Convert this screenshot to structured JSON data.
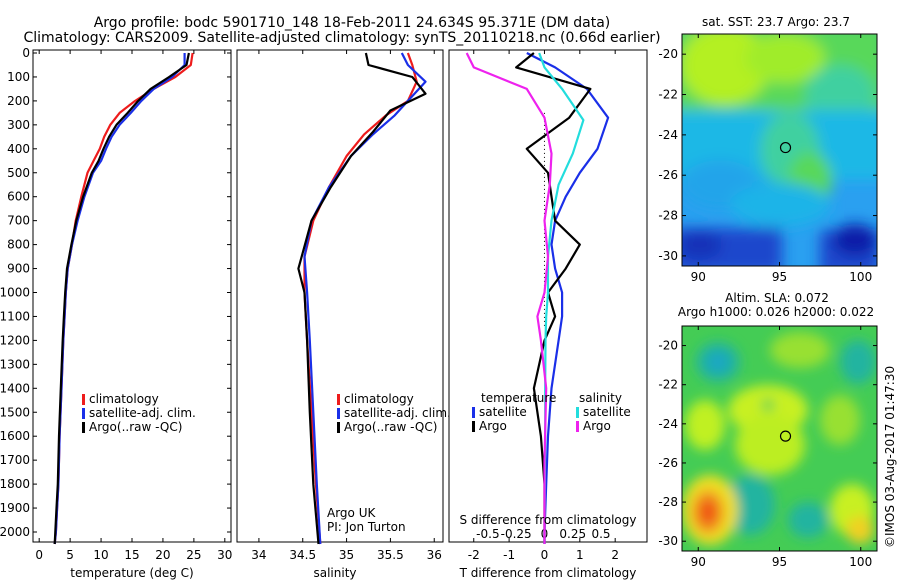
{
  "header": {
    "title_line1": "Argo profile: bodc 5901710_148 18-Feb-2011 24.634S 95.371E (DM data)",
    "title_line2": "Climatology: CARS2009. Satellite-adjusted climatology: synTS_20110218.nc (0.66d earlier)"
  },
  "credit": "©IMOS 03-Aug-2017 01:47:30",
  "colors": {
    "climatology": "#ee1c1c",
    "satellite": "#1a2fe8",
    "argo": "#000000",
    "sal_satellite": "#22dddd",
    "sal_argo": "#ee22ee"
  },
  "chart_data": [
    {
      "type": "line",
      "panel": "temperature",
      "xlabel": "temperature (deg C)",
      "xlim": [
        -1,
        31
      ],
      "xticks": [
        0,
        5,
        10,
        15,
        20,
        25,
        30
      ],
      "ylim": [
        2050,
        0
      ],
      "yticks": [
        0,
        100,
        200,
        300,
        400,
        500,
        600,
        700,
        800,
        900,
        1000,
        1100,
        1200,
        1300,
        1400,
        1500,
        1600,
        1700,
        1800,
        1900,
        2000
      ],
      "legend": [
        "climatology",
        "satellite-adj. clim.",
        "Argo(..raw -QC)"
      ],
      "series": [
        {
          "name": "climatology",
          "color": "#ee1c1c",
          "x": [
            24.8,
            24.5,
            22,
            18.5,
            15.5,
            13,
            11.5,
            10.5,
            9.8,
            8.8,
            7.8,
            6.8,
            5.9,
            5.3,
            4.6,
            4.3,
            4.1,
            3.9,
            3.6,
            3.3,
            3.1,
            2.9,
            2.7,
            2.5
          ],
          "y": [
            0,
            50,
            100,
            150,
            200,
            250,
            300,
            350,
            400,
            450,
            500,
            600,
            700,
            800,
            900,
            1000,
            1100,
            1200,
            1400,
            1600,
            1800,
            1900,
            2000,
            2050
          ]
        },
        {
          "name": "satellite-adj. clim.",
          "color": "#1a2fe8",
          "x": [
            23.5,
            23.5,
            21.5,
            18.5,
            16.5,
            14.8,
            13,
            11.7,
            10.8,
            10,
            8.7,
            7.3,
            6.2,
            5.3,
            4.6,
            4.3,
            4.1,
            3.9,
            3.6,
            3.3,
            3.1,
            2.9,
            2.7,
            2.5
          ],
          "y": [
            0,
            50,
            100,
            150,
            200,
            250,
            300,
            350,
            400,
            450,
            500,
            600,
            700,
            800,
            900,
            1000,
            1100,
            1200,
            1400,
            1600,
            1800,
            1900,
            2000,
            2050
          ]
        },
        {
          "name": "Argo(..raw -QC)",
          "color": "#000000",
          "x": [
            24.2,
            23.8,
            21,
            18,
            16,
            14.3,
            12.5,
            11.3,
            10.4,
            9.6,
            8.5,
            7.1,
            6,
            5.2,
            4.5,
            4.2,
            4,
            3.8,
            3.5,
            3.2,
            3,
            2.8,
            2.6,
            2.5
          ],
          "y": [
            0,
            50,
            100,
            150,
            200,
            250,
            300,
            350,
            400,
            450,
            500,
            600,
            700,
            800,
            900,
            1000,
            1100,
            1200,
            1400,
            1600,
            1800,
            1900,
            2000,
            2050
          ]
        }
      ]
    },
    {
      "type": "line",
      "panel": "salinity",
      "xlabel": "salinity",
      "xlim": [
        33.75,
        36.1
      ],
      "xticks": [
        34,
        34.5,
        35,
        35.5,
        36
      ],
      "ylim": [
        2050,
        0
      ],
      "legend": [
        "climatology",
        "satellite-adj. clim.",
        "Argo(..raw -QC)"
      ],
      "annotation": [
        "Argo UK",
        "PI: Jon Turton"
      ],
      "series": [
        {
          "name": "climatology",
          "color": "#ee1c1c",
          "x": [
            35.7,
            35.75,
            35.8,
            35.7,
            35.45,
            35.2,
            35.0,
            34.8,
            34.62,
            34.52,
            34.52,
            34.55,
            34.6,
            34.65,
            34.7
          ],
          "y": [
            0,
            50,
            120,
            200,
            260,
            340,
            430,
            560,
            700,
            850,
            1000,
            1200,
            1500,
            1800,
            2050
          ]
        },
        {
          "name": "satellite-adj. clim.",
          "color": "#1a2fe8",
          "x": [
            35.63,
            35.7,
            35.9,
            35.7,
            35.55,
            35.3,
            35.05,
            34.8,
            34.6,
            34.52,
            34.55,
            34.58,
            34.62,
            34.66,
            34.7
          ],
          "y": [
            0,
            50,
            120,
            200,
            260,
            340,
            430,
            560,
            700,
            850,
            1000,
            1200,
            1500,
            1800,
            2050
          ]
        },
        {
          "name": "Argo(..raw -QC)",
          "color": "#000000",
          "x": [
            35.22,
            35.25,
            35.75,
            35.9,
            35.5,
            35.3,
            35.05,
            34.82,
            34.6,
            34.45,
            34.52,
            34.55,
            34.58,
            34.62,
            34.68
          ],
          "y": [
            0,
            50,
            100,
            170,
            240,
            330,
            430,
            560,
            700,
            900,
            1000,
            1200,
            1500,
            1800,
            2050
          ]
        }
      ]
    },
    {
      "type": "line",
      "panel": "difference",
      "xlabel": "T difference from climatology",
      "xlabel2": "S difference from climatology",
      "xlim": [
        -2.7,
        2.9
      ],
      "xticks": [
        -2,
        -1,
        0,
        1,
        2
      ],
      "xticks2": [
        "-0.5",
        "-0.25",
        "0",
        "0.25",
        "0.5"
      ],
      "ylim": [
        2050,
        0
      ],
      "legend_headings": [
        "temperature",
        "salinity"
      ],
      "legend": [
        "satellite",
        "Argo",
        "satellite",
        "Argo"
      ],
      "series": [
        {
          "name": "satellite",
          "group": "temperature",
          "color": "#1a2fe8",
          "x": [
            -0.5,
            0.3,
            1.2,
            1.8,
            1.5,
            1.0,
            0.6,
            0.3,
            0.2,
            0.3,
            0.5,
            0.5,
            0.4,
            0.2,
            0.1,
            0.05,
            0,
            0
          ],
          "y": [
            0,
            60,
            150,
            270,
            400,
            500,
            600,
            700,
            800,
            900,
            1000,
            1100,
            1200,
            1400,
            1600,
            1800,
            2000,
            2050
          ]
        },
        {
          "name": "Argo",
          "group": "temperature",
          "color": "#000000",
          "x": [
            -0.3,
            -0.8,
            1.3,
            0.7,
            -0.5,
            0.1,
            0.2,
            0.3,
            1.0,
            0.6,
            0.1,
            0.3,
            0.0,
            -0.3,
            -0.1,
            0,
            0,
            0
          ],
          "y": [
            0,
            60,
            150,
            270,
            400,
            500,
            600,
            700,
            800,
            900,
            1000,
            1100,
            1200,
            1400,
            1600,
            1800,
            2000,
            2050
          ]
        },
        {
          "name": "satellite",
          "group": "salinity",
          "color": "#22dddd",
          "x": [
            -0.15,
            0.0,
            0.5,
            1.1,
            0.8,
            0.4,
            0.2,
            0.1,
            0.1,
            0.05,
            0.03,
            0.02,
            0.02,
            0.01,
            0,
            0
          ],
          "y": [
            0,
            60,
            150,
            280,
            420,
            550,
            700,
            850,
            1000,
            1100,
            1200,
            1400,
            1600,
            1800,
            2000,
            2050
          ]
        },
        {
          "name": "Argo",
          "group": "salinity",
          "color": "#ee22ee",
          "x": [
            -2.2,
            -2.0,
            -0.5,
            0.0,
            0.2,
            0.15,
            0.0,
            0.1,
            0.0,
            -0.2,
            -0.1,
            0.05,
            0.0,
            0
          ],
          "y": [
            0,
            60,
            150,
            270,
            420,
            550,
            700,
            850,
            1000,
            1100,
            1200,
            1400,
            1700,
            2050
          ]
        }
      ]
    },
    {
      "type": "heatmap",
      "panel": "sst-map",
      "title": "sat. SST: 23.7 Argo: 23.7",
      "xlim": [
        89,
        101
      ],
      "ylim": [
        -30.5,
        -19
      ],
      "xticks": [
        90,
        95,
        100
      ],
      "yticks": [
        -20,
        -22,
        -24,
        -26,
        -28,
        -30
      ],
      "marker": {
        "lon": 95.37,
        "lat": -24.63
      }
    },
    {
      "type": "heatmap",
      "panel": "sla-map",
      "title_line1": "Altim. SLA: 0.072",
      "title_line2": "Argo h1000: 0.026 h2000: 0.022",
      "xlim": [
        89,
        101
      ],
      "ylim": [
        -30.5,
        -19
      ],
      "xticks": [
        90,
        95,
        100
      ],
      "yticks": [
        -20,
        -22,
        -24,
        -26,
        -28,
        -30
      ],
      "marker": {
        "lon": 95.37,
        "lat": -24.63
      }
    }
  ]
}
